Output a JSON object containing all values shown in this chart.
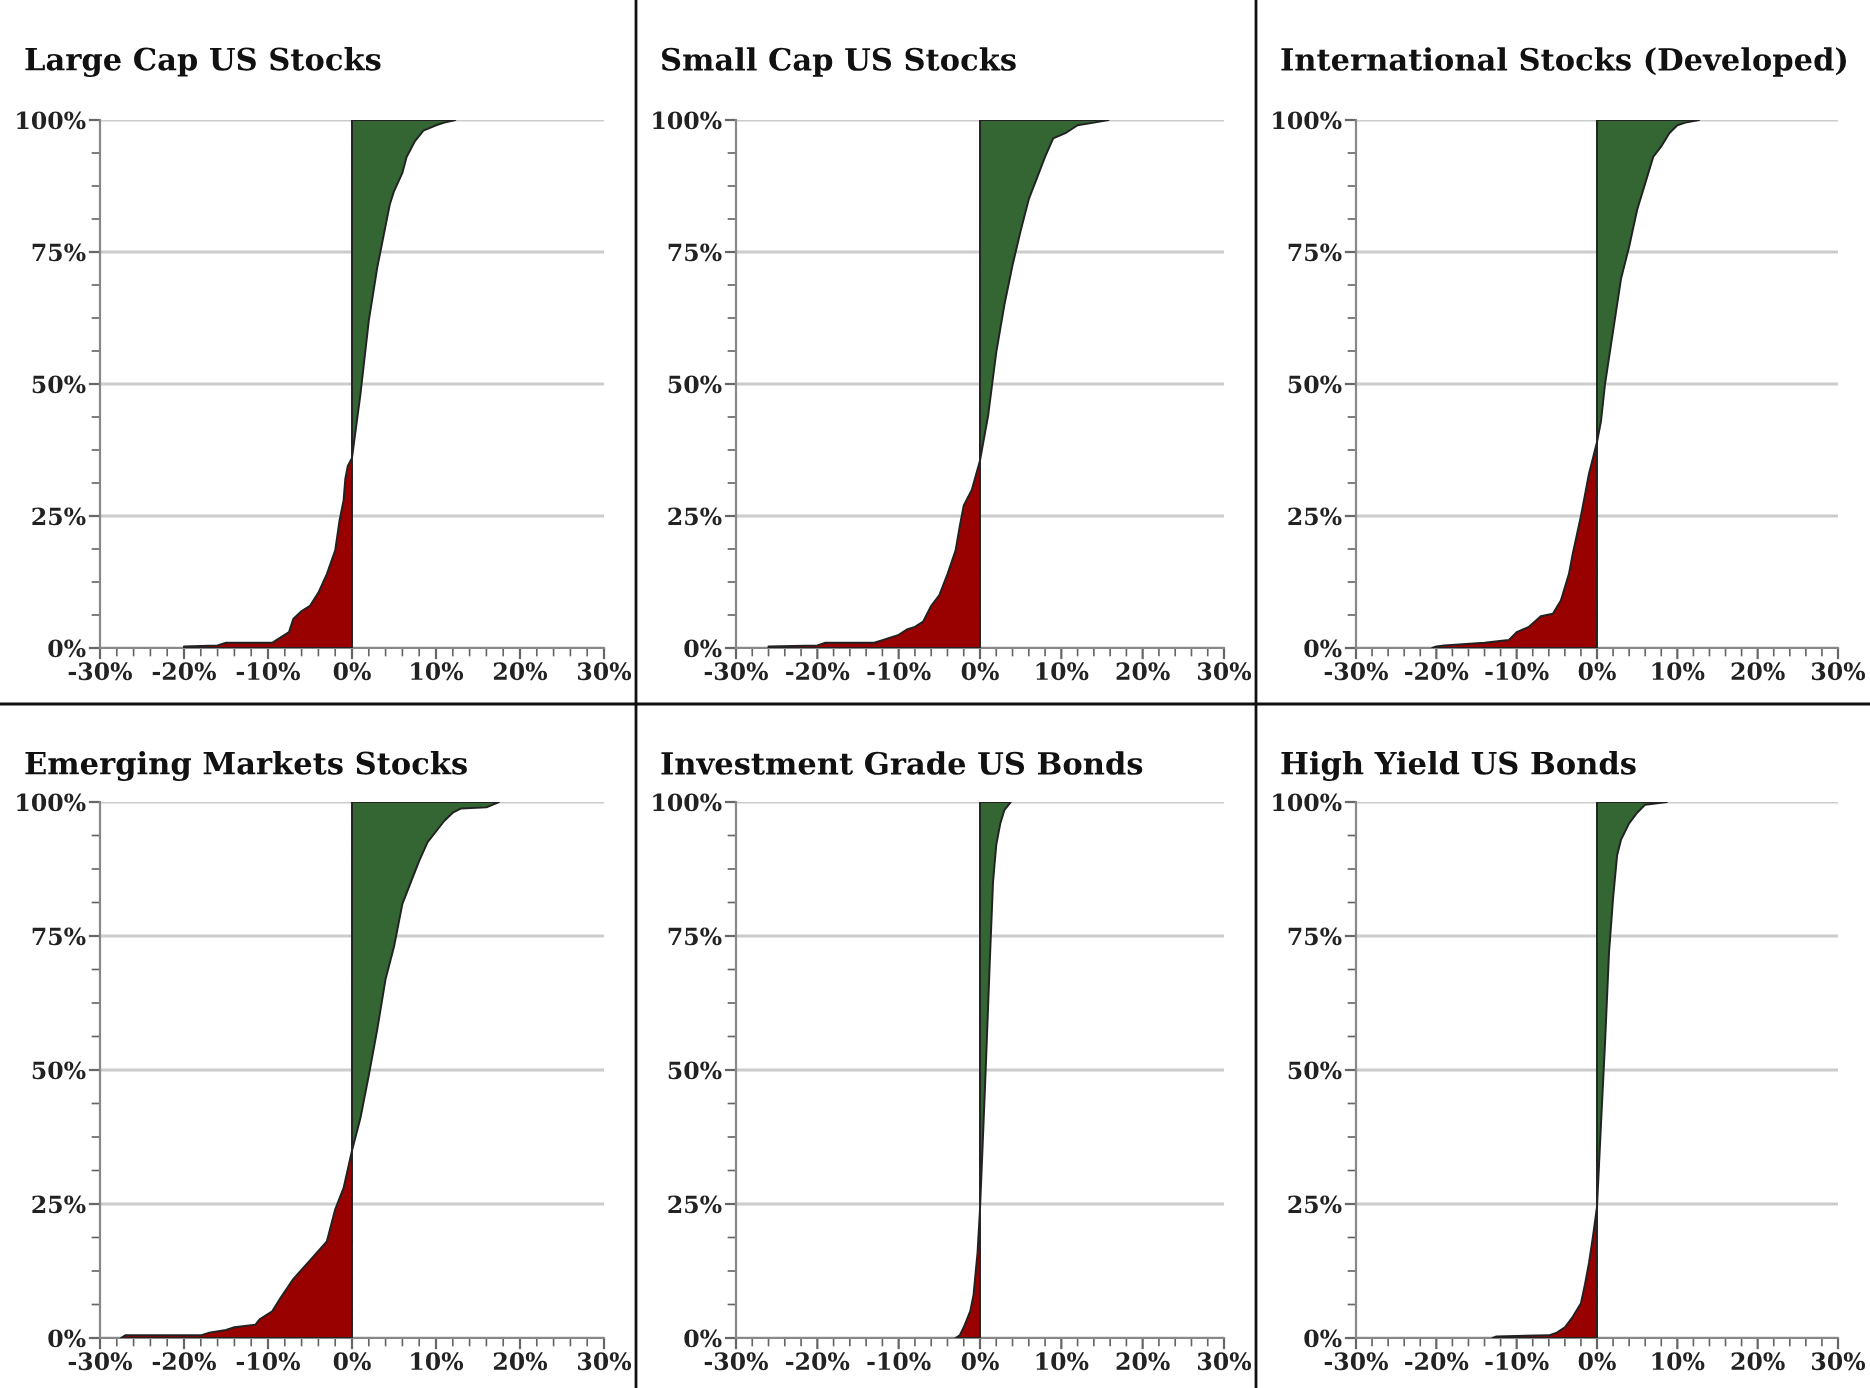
{
  "chart_data": [
    {
      "type": "area",
      "orientation": "horizontal",
      "title": "Large Cap US Stocks",
      "xlim": [
        -30,
        30
      ],
      "ylim": [
        0,
        100
      ],
      "grid": "y",
      "xticks": [
        {
          "value": -30,
          "label": "-30%"
        },
        {
          "value": -20,
          "label": "-20%"
        },
        {
          "value": -10,
          "label": "-10%"
        },
        {
          "value": 0,
          "label": "0%"
        },
        {
          "value": 10,
          "label": "10%"
        },
        {
          "value": 20,
          "label": "20%"
        },
        {
          "value": 30,
          "label": "30%"
        }
      ],
      "yticks": [
        {
          "value": 0,
          "label": "0%"
        },
        {
          "value": 25,
          "label": "25%"
        },
        {
          "value": 50,
          "label": "50%"
        },
        {
          "value": 75,
          "label": "75%"
        },
        {
          "value": 100,
          "label": "100%"
        }
      ],
      "series": [
        {
          "color": "#990000",
          "values": [
            -20,
            -20,
            -16,
            -15,
            -9.5,
            -9,
            -7.5,
            -7,
            -6,
            -5,
            -4,
            -3,
            -2,
            -1.5,
            -1,
            -0.8,
            -0.5,
            0
          ],
          "x": [
            0,
            0.3,
            0.5,
            1,
            1,
            1.5,
            3,
            5.5,
            7,
            8,
            10.5,
            14,
            18.5,
            24,
            28,
            32,
            34.5,
            36
          ]
        },
        {
          "color": "#336633",
          "values": [
            0,
            0.5,
            1,
            1.5,
            2,
            2.5,
            3,
            3.5,
            4,
            4.5,
            5,
            6,
            6.5,
            7.5,
            8.5,
            10,
            11,
            12.3
          ],
          "x": [
            36,
            42,
            48,
            55,
            62,
            67,
            72,
            76,
            80,
            84,
            86.5,
            90,
            93,
            96,
            98,
            99,
            99.5,
            100
          ]
        }
      ]
    },
    {
      "type": "area",
      "orientation": "horizontal",
      "title": "Small Cap US Stocks",
      "xlim": [
        -30,
        30
      ],
      "ylim": [
        0,
        100
      ],
      "grid": "y",
      "xticks": [
        {
          "value": -30,
          "label": "-30%"
        },
        {
          "value": -20,
          "label": "-20%"
        },
        {
          "value": -10,
          "label": "-10%"
        },
        {
          "value": 0,
          "label": "0%"
        },
        {
          "value": 10,
          "label": "10%"
        },
        {
          "value": 20,
          "label": "20%"
        },
        {
          "value": 30,
          "label": "30%"
        }
      ],
      "yticks": [
        {
          "value": 0,
          "label": "0%"
        },
        {
          "value": 25,
          "label": "25%"
        },
        {
          "value": 50,
          "label": "50%"
        },
        {
          "value": 75,
          "label": "75%"
        },
        {
          "value": 100,
          "label": "100%"
        }
      ],
      "series": [
        {
          "color": "#990000",
          "values": [
            -26,
            -26,
            -20,
            -19,
            -13,
            -12,
            -10,
            -9,
            -8,
            -7,
            -6,
            -5,
            -4,
            -3,
            -2.5,
            -2,
            -1,
            0
          ],
          "x": [
            0,
            0.3,
            0.5,
            1,
            1,
            1.5,
            2.5,
            3.5,
            4,
            5,
            8,
            10,
            14,
            18.5,
            23,
            27,
            30,
            35.5
          ]
        },
        {
          "color": "#336633",
          "values": [
            0,
            1,
            1.5,
            2,
            3,
            4,
            5,
            6,
            7,
            8,
            9,
            10.5,
            12,
            14,
            15.8
          ],
          "x": [
            35.5,
            44,
            50,
            56,
            65,
            72.5,
            79,
            85,
            89,
            93,
            96.5,
            97.5,
            99,
            99.5,
            100
          ]
        }
      ]
    },
    {
      "type": "area",
      "orientation": "horizontal",
      "title": "International Stocks (Developed)",
      "xlim": [
        -30,
        30
      ],
      "ylim": [
        0,
        100
      ],
      "grid": "y",
      "xticks": [
        {
          "value": -30,
          "label": "-30%"
        },
        {
          "value": -20,
          "label": "-20%"
        },
        {
          "value": -10,
          "label": "-10%"
        },
        {
          "value": 0,
          "label": "0%"
        },
        {
          "value": 10,
          "label": "10%"
        },
        {
          "value": 20,
          "label": "20%"
        },
        {
          "value": 30,
          "label": "30%"
        }
      ],
      "yticks": [
        {
          "value": 0,
          "label": "0%"
        },
        {
          "value": 25,
          "label": "25%"
        },
        {
          "value": 50,
          "label": "50%"
        },
        {
          "value": 75,
          "label": "75%"
        },
        {
          "value": 100,
          "label": "100%"
        }
      ],
      "series": [
        {
          "color": "#990000",
          "values": [
            -20.5,
            -20,
            -19,
            -14,
            -11,
            -10,
            -8.5,
            -7,
            -5.5,
            -4.5,
            -3.5,
            -3,
            -2,
            -1.5,
            -1,
            0
          ],
          "x": [
            0,
            0.3,
            0.5,
            1,
            1.5,
            3,
            4,
            6,
            6.5,
            9,
            14,
            18,
            25,
            29,
            33,
            39
          ]
        },
        {
          "color": "#336633",
          "values": [
            0,
            0.5,
            1,
            2,
            3,
            4,
            5,
            6,
            7,
            8,
            9,
            10,
            11,
            12.7
          ],
          "x": [
            39,
            43,
            50,
            60,
            70,
            76,
            83,
            88,
            93,
            95,
            97.5,
            99,
            99.5,
            100
          ]
        }
      ]
    },
    {
      "type": "area",
      "orientation": "horizontal",
      "title": "Emerging Markets Stocks",
      "xlim": [
        -30,
        30
      ],
      "ylim": [
        0,
        100
      ],
      "grid": "y",
      "xticks": [
        {
          "value": -30,
          "label": "-30%"
        },
        {
          "value": -20,
          "label": "-20%"
        },
        {
          "value": -10,
          "label": "-10%"
        },
        {
          "value": 0,
          "label": "0%"
        },
        {
          "value": 10,
          "label": "10%"
        },
        {
          "value": 20,
          "label": "20%"
        },
        {
          "value": 30,
          "label": "30%"
        }
      ],
      "yticks": [
        {
          "value": 0,
          "label": "0%"
        },
        {
          "value": 25,
          "label": "25%"
        },
        {
          "value": 50,
          "label": "50%"
        },
        {
          "value": 75,
          "label": "75%"
        },
        {
          "value": 100,
          "label": "100%"
        }
      ],
      "series": [
        {
          "color": "#990000",
          "values": [
            -27.5,
            -27,
            -18,
            -17,
            -15,
            -14,
            -11.5,
            -11,
            -9.5,
            -8.5,
            -7,
            -5,
            -3,
            -2,
            -1,
            0
          ],
          "x": [
            0,
            0.5,
            0.5,
            1,
            1.5,
            2,
            2.5,
            3.5,
            5,
            7.5,
            11,
            14.5,
            18,
            24,
            28,
            35
          ]
        },
        {
          "color": "#336633",
          "values": [
            0,
            1,
            2,
            3,
            4,
            5,
            6,
            7,
            8,
            9,
            10,
            11,
            12,
            13,
            16,
            17.5
          ],
          "x": [
            35,
            41,
            49,
            57.5,
            67,
            73,
            81,
            85,
            89,
            92.5,
            94.5,
            96.5,
            98,
            98.8,
            99,
            100
          ]
        }
      ]
    },
    {
      "type": "area",
      "orientation": "horizontal",
      "title": "Investment Grade US Bonds",
      "xlim": [
        -30,
        30
      ],
      "ylim": [
        0,
        100
      ],
      "grid": "y",
      "xticks": [
        {
          "value": -30,
          "label": "-30%"
        },
        {
          "value": -20,
          "label": "-20%"
        },
        {
          "value": -10,
          "label": "-10%"
        },
        {
          "value": 0,
          "label": "0%"
        },
        {
          "value": 10,
          "label": "10%"
        },
        {
          "value": 20,
          "label": "20%"
        },
        {
          "value": 30,
          "label": "30%"
        }
      ],
      "yticks": [
        {
          "value": 0,
          "label": "0%"
        },
        {
          "value": 25,
          "label": "25%"
        },
        {
          "value": 50,
          "label": "50%"
        },
        {
          "value": 75,
          "label": "75%"
        },
        {
          "value": 100,
          "label": "100%"
        }
      ],
      "series": [
        {
          "color": "#990000",
          "values": [
            -3,
            -2.5,
            -2,
            -1.2,
            -0.8,
            -0.3,
            0
          ],
          "x": [
            0,
            0.5,
            2,
            5,
            8,
            16,
            24
          ]
        },
        {
          "color": "#336633",
          "values": [
            0,
            0.3,
            0.7,
            1.2,
            1.6,
            2,
            2.5,
            3,
            3.8
          ],
          "x": [
            24,
            35,
            50,
            70,
            85,
            92,
            96,
            98.5,
            100
          ]
        }
      ]
    },
    {
      "type": "area",
      "orientation": "horizontal",
      "title": "High Yield US Bonds",
      "xlim": [
        -30,
        30
      ],
      "ylim": [
        0,
        100
      ],
      "grid": "y",
      "xticks": [
        {
          "value": -30,
          "label": "-30%"
        },
        {
          "value": -20,
          "label": "-20%"
        },
        {
          "value": -10,
          "label": "-10%"
        },
        {
          "value": 0,
          "label": "0%"
        },
        {
          "value": 10,
          "label": "10%"
        },
        {
          "value": 20,
          "label": "20%"
        },
        {
          "value": 30,
          "label": "30%"
        }
      ],
      "yticks": [
        {
          "value": 0,
          "label": "0%"
        },
        {
          "value": 25,
          "label": "25%"
        },
        {
          "value": 50,
          "label": "50%"
        },
        {
          "value": 75,
          "label": "75%"
        },
        {
          "value": 100,
          "label": "100%"
        }
      ],
      "series": [
        {
          "color": "#990000",
          "values": [
            -13,
            -12.5,
            -6,
            -5,
            -4,
            -3,
            -2,
            -1.5,
            -1,
            -0.5,
            0
          ],
          "x": [
            0,
            0.3,
            0.5,
            1,
            2,
            4,
            6.5,
            10,
            14,
            19,
            24.5
          ]
        },
        {
          "color": "#336633",
          "values": [
            0,
            0.5,
            1,
            1.5,
            2,
            2.5,
            3,
            4,
            5,
            6,
            8.7
          ],
          "x": [
            24.5,
            40,
            55,
            72,
            82,
            90,
            93,
            96,
            98,
            99.5,
            100
          ]
        }
      ]
    }
  ]
}
